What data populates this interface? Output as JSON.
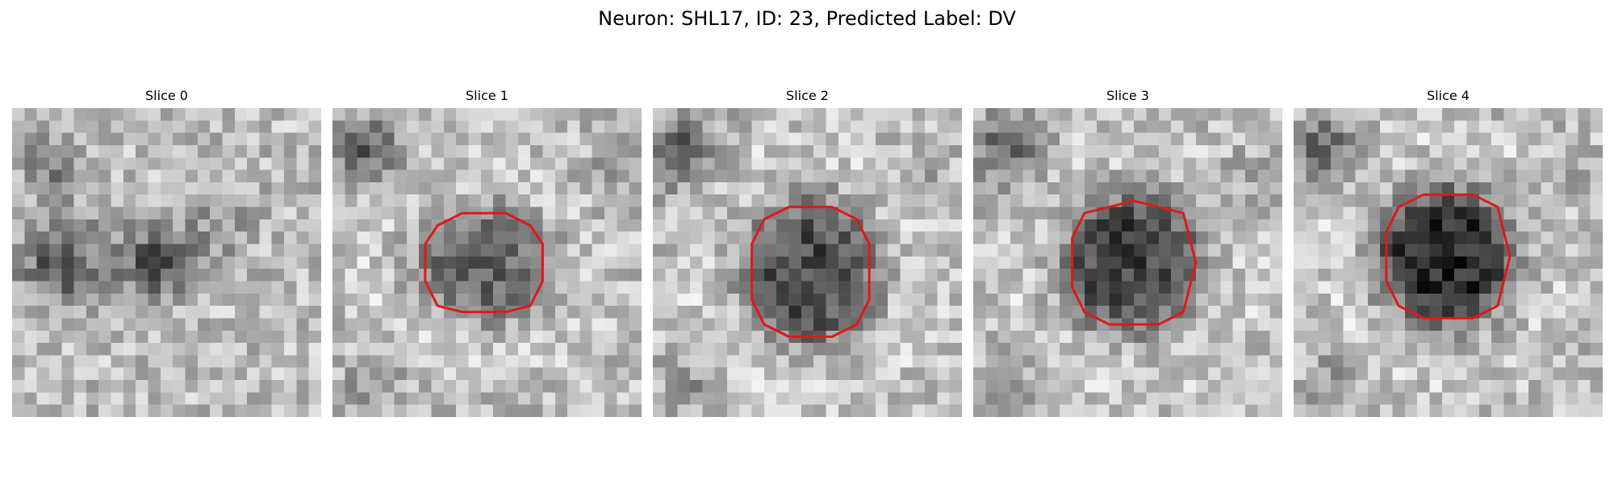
{
  "figure": {
    "title": "Neuron: SHL17, ID: 23, Predicted Label: DV"
  },
  "image_grid": {
    "pixels_per_side": 25,
    "colormap": "gray"
  },
  "panels": [
    {
      "title": "Slice 0",
      "contour": null
    },
    {
      "title": "Slice 1",
      "contour": {
        "color": "#e01818",
        "center": [
          12.3,
          12.6
        ],
        "rx": 4.8,
        "ry": 4.0,
        "darkness": 0.35
      }
    },
    {
      "title": "Slice 2",
      "contour": {
        "color": "#e01818",
        "center": [
          12.8,
          13.3
        ],
        "rx": 4.8,
        "ry": 5.3,
        "darkness": 0.45
      }
    },
    {
      "title": "Slice 3",
      "contour": {
        "color": "#e01818",
        "center": [
          12.8,
          12.6
        ],
        "rx": 5.0,
        "ry": 4.9,
        "darkness": 0.5
      }
    },
    {
      "title": "Slice 4",
      "contour": {
        "color": "#e01818",
        "center": [
          12.4,
          12.0
        ],
        "rx": 4.9,
        "ry": 4.9,
        "darkness": 0.6
      }
    }
  ]
}
